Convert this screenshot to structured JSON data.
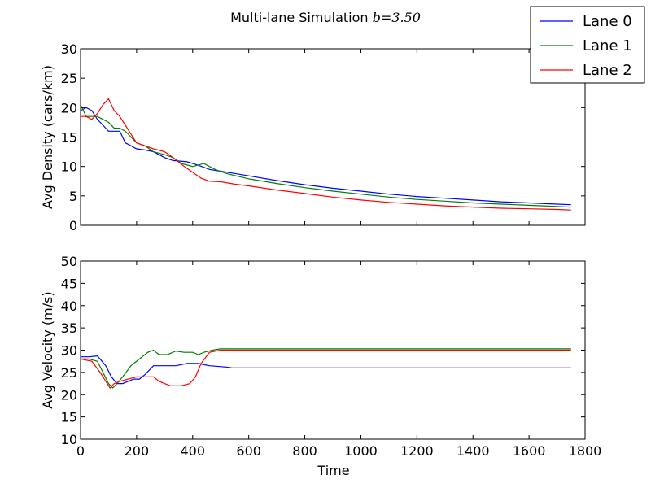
{
  "chart_data": {
    "type": "line",
    "title": "Multi-lane Simulation b=3.50",
    "title_parts": {
      "text": "Multi-lane Simulation ",
      "math": "b=3.50"
    },
    "legend": {
      "placement": "top-right",
      "entries": [
        {
          "label": "Lane 0",
          "color": "#0000ff"
        },
        {
          "label": "Lane 1",
          "color": "#008000"
        },
        {
          "label": "Lane 2",
          "color": "#ff0000"
        }
      ]
    },
    "xlabel": "Time",
    "xlim": [
      0,
      1800
    ],
    "xticks": [
      "0",
      "200",
      "400",
      "600",
      "800",
      "1000",
      "1200",
      "1400",
      "1600",
      "1800"
    ],
    "grid": false,
    "subplots": [
      {
        "ylabel": "Avg Density (cars/km)",
        "ylim": [
          0,
          30
        ],
        "yticks": [
          "0",
          "5",
          "10",
          "15",
          "20",
          "25",
          "30"
        ],
        "show_xticklabels": false,
        "series": [
          {
            "name": "Lane 0",
            "color": "#0000ff",
            "points": [
              [
                0,
                19.5
              ],
              [
                20,
                20
              ],
              [
                40,
                19.5
              ],
              [
                60,
                18
              ],
              [
                80,
                17
              ],
              [
                100,
                16
              ],
              [
                120,
                16
              ],
              [
                140,
                16
              ],
              [
                160,
                14
              ],
              [
                180,
                13.5
              ],
              [
                200,
                13
              ],
              [
                230,
                12.8
              ],
              [
                260,
                12.5
              ],
              [
                300,
                11.5
              ],
              [
                330,
                11
              ],
              [
                380,
                10.8
              ],
              [
                420,
                10.2
              ],
              [
                460,
                9.5
              ],
              [
                500,
                9.2
              ],
              [
                550,
                8.8
              ],
              [
                600,
                8.4
              ],
              [
                700,
                7.6
              ],
              [
                800,
                6.9
              ],
              [
                900,
                6.3
              ],
              [
                1000,
                5.8
              ],
              [
                1100,
                5.3
              ],
              [
                1200,
                4.9
              ],
              [
                1300,
                4.6
              ],
              [
                1400,
                4.3
              ],
              [
                1500,
                4
              ],
              [
                1600,
                3.8
              ],
              [
                1700,
                3.6
              ],
              [
                1750,
                3.5
              ]
            ]
          },
          {
            "name": "Lane 1",
            "color": "#008000",
            "points": [
              [
                0,
                20.5
              ],
              [
                20,
                18.5
              ],
              [
                40,
                18.5
              ],
              [
                60,
                18.5
              ],
              [
                80,
                18
              ],
              [
                100,
                17.5
              ],
              [
                120,
                16.5
              ],
              [
                140,
                16.5
              ],
              [
                160,
                16
              ],
              [
                180,
                15
              ],
              [
                200,
                14
              ],
              [
                230,
                13.5
              ],
              [
                260,
                12.5
              ],
              [
                300,
                12
              ],
              [
                330,
                11.5
              ],
              [
                360,
                10.5
              ],
              [
                400,
                10
              ],
              [
                440,
                10.5
              ],
              [
                480,
                9.5
              ],
              [
                520,
                8.8
              ],
              [
                600,
                7.9
              ],
              [
                700,
                7.1
              ],
              [
                800,
                6.4
              ],
              [
                900,
                5.8
              ],
              [
                1000,
                5.3
              ],
              [
                1100,
                4.8
              ],
              [
                1200,
                4.4
              ],
              [
                1300,
                4.1
              ],
              [
                1400,
                3.8
              ],
              [
                1500,
                3.6
              ],
              [
                1600,
                3.4
              ],
              [
                1700,
                3.2
              ],
              [
                1750,
                3.1
              ]
            ]
          },
          {
            "name": "Lane 2",
            "color": "#ff0000",
            "points": [
              [
                0,
                18.5
              ],
              [
                20,
                18.5
              ],
              [
                40,
                18
              ],
              [
                60,
                19
              ],
              [
                80,
                20.5
              ],
              [
                100,
                21.5
              ],
              [
                120,
                19.5
              ],
              [
                140,
                18.5
              ],
              [
                160,
                17
              ],
              [
                180,
                15.5
              ],
              [
                200,
                14
              ],
              [
                230,
                13.5
              ],
              [
                260,
                13
              ],
              [
                300,
                12.5
              ],
              [
                330,
                11.5
              ],
              [
                370,
                10
              ],
              [
                400,
                9
              ],
              [
                430,
                8
              ],
              [
                460,
                7.5
              ],
              [
                500,
                7.4
              ],
              [
                550,
                7
              ],
              [
                600,
                6.7
              ],
              [
                700,
                6
              ],
              [
                800,
                5.4
              ],
              [
                900,
                4.8
              ],
              [
                1000,
                4.3
              ],
              [
                1100,
                3.9
              ],
              [
                1200,
                3.6
              ],
              [
                1300,
                3.3
              ],
              [
                1400,
                3.1
              ],
              [
                1500,
                2.9
              ],
              [
                1600,
                2.8
              ],
              [
                1700,
                2.7
              ],
              [
                1750,
                2.6
              ]
            ]
          }
        ]
      },
      {
        "ylabel": "Avg Velocity (m/s)",
        "ylim": [
          10,
          50
        ],
        "yticks": [
          "10",
          "15",
          "20",
          "25",
          "30",
          "35",
          "40",
          "45",
          "50"
        ],
        "show_xticklabels": true,
        "series": [
          {
            "name": "Lane 0",
            "color": "#0000ff",
            "points": [
              [
                0,
                28.5
              ],
              [
                30,
                28.5
              ],
              [
                60,
                28.7
              ],
              [
                90,
                26.5
              ],
              [
                110,
                24
              ],
              [
                130,
                22.5
              ],
              [
                150,
                22.5
              ],
              [
                170,
                23
              ],
              [
                190,
                23.5
              ],
              [
                210,
                23.5
              ],
              [
                230,
                24.5
              ],
              [
                260,
                26.5
              ],
              [
                300,
                26.5
              ],
              [
                340,
                26.5
              ],
              [
                380,
                27
              ],
              [
                420,
                27
              ],
              [
                460,
                26.5
              ],
              [
                520,
                26.2
              ],
              [
                540,
                26
              ],
              [
                600,
                26
              ],
              [
                1000,
                26
              ],
              [
                1400,
                26
              ],
              [
                1750,
                26
              ]
            ]
          },
          {
            "name": "Lane 1",
            "color": "#008000",
            "points": [
              [
                0,
                28
              ],
              [
                30,
                28
              ],
              [
                60,
                27.5
              ],
              [
                80,
                25
              ],
              [
                100,
                22.5
              ],
              [
                115,
                21.5
              ],
              [
                130,
                22.5
              ],
              [
                150,
                24
              ],
              [
                180,
                26.5
              ],
              [
                210,
                28
              ],
              [
                240,
                29.5
              ],
              [
                260,
                30
              ],
              [
                280,
                29
              ],
              [
                310,
                29
              ],
              [
                340,
                29.8
              ],
              [
                370,
                29.5
              ],
              [
                400,
                29.5
              ],
              [
                420,
                29
              ],
              [
                440,
                29.5
              ],
              [
                470,
                30
              ],
              [
                500,
                30.3
              ],
              [
                540,
                30.3
              ],
              [
                600,
                30.3
              ],
              [
                1000,
                30.3
              ],
              [
                1400,
                30.3
              ],
              [
                1750,
                30.3
              ]
            ]
          },
          {
            "name": "Lane 2",
            "color": "#ff0000",
            "points": [
              [
                0,
                28
              ],
              [
                40,
                27.5
              ],
              [
                70,
                25
              ],
              [
                90,
                23
              ],
              [
                105,
                21.5
              ],
              [
                120,
                22.5
              ],
              [
                140,
                23
              ],
              [
                170,
                23.5
              ],
              [
                200,
                24
              ],
              [
                230,
                24
              ],
              [
                260,
                24
              ],
              [
                280,
                23
              ],
              [
                300,
                22.5
              ],
              [
                320,
                22
              ],
              [
                360,
                22
              ],
              [
                390,
                22.5
              ],
              [
                410,
                24
              ],
              [
                430,
                27
              ],
              [
                460,
                29.5
              ],
              [
                500,
                30
              ],
              [
                540,
                30
              ],
              [
                600,
                30
              ],
              [
                1000,
                30
              ],
              [
                1400,
                30
              ],
              [
                1750,
                30
              ]
            ]
          }
        ]
      }
    ]
  }
}
